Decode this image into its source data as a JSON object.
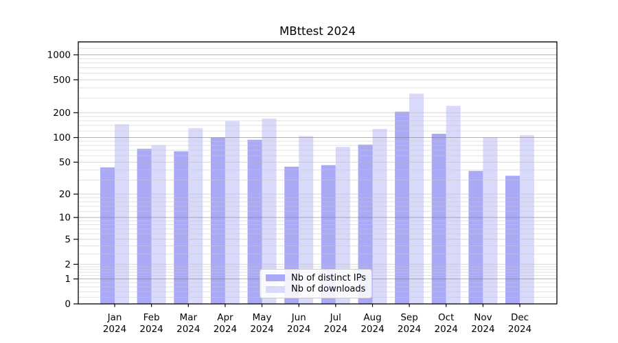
{
  "title": "MBttest 2024",
  "colors": {
    "ips_bar": "#a9a9f8",
    "downloads_bar": "#d9d9fb",
    "grid_decade": "#b3b3b3",
    "grid_minor": "#dedede",
    "axis": "#000000",
    "legend_border": "#cccccc"
  },
  "legend": {
    "items": [
      {
        "label": "Nb of distinct IPs",
        "series": "ips"
      },
      {
        "label": "Nb of downloads",
        "series": "downloads"
      }
    ]
  },
  "y_axis": {
    "tick_labels": [
      "0",
      "1",
      "2",
      "5",
      "10",
      "20",
      "50",
      "100",
      "200",
      "500",
      "1000"
    ]
  },
  "x_axis": {
    "year": "2024",
    "months": [
      "Jan",
      "Feb",
      "Mar",
      "Apr",
      "May",
      "Jun",
      "Jul",
      "Aug",
      "Sep",
      "Oct",
      "Nov",
      "Dec"
    ]
  },
  "chart_data": {
    "type": "bar",
    "title": "MBttest 2024",
    "categories": [
      "Jan 2024",
      "Feb 2024",
      "Mar 2024",
      "Apr 2024",
      "May 2024",
      "Jun 2024",
      "Jul 2024",
      "Aug 2024",
      "Sep 2024",
      "Oct 2024",
      "Nov 2024",
      "Dec 2024"
    ],
    "series": [
      {
        "name": "Nb of distinct IPs",
        "values": [
          43,
          73,
          68,
          100,
          94,
          44,
          46,
          82,
          206,
          111,
          39,
          34
        ]
      },
      {
        "name": "Nb of downloads",
        "values": [
          145,
          81,
          130,
          158,
          170,
          104,
          77,
          127,
          340,
          242,
          100,
          107
        ]
      }
    ],
    "y_scale": "log1p",
    "y_ticks": [
      0,
      1,
      2,
      5,
      10,
      20,
      50,
      100,
      200,
      500,
      1000
    ],
    "ylim": [
      0,
      1410
    ],
    "xlabel": "",
    "ylabel": "",
    "grid": true,
    "legend_position": "lower center"
  }
}
